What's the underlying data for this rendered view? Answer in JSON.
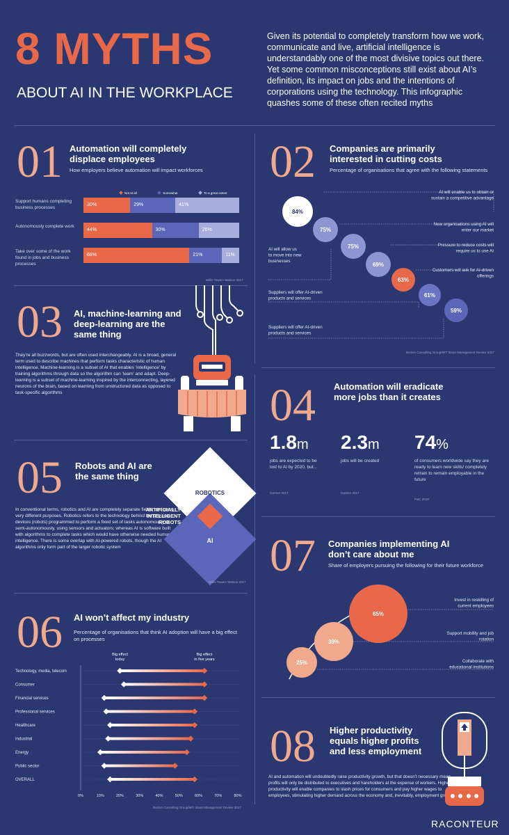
{
  "header": {
    "title": "8 MYTHS",
    "subtitle": "ABOUT AI IN THE WORKPLACE",
    "intro": "Given its potential to completely transform how we work, communicate and live, artificial intelligence is understandably one of the most divisive topics out there. Yet some common misconceptions still exist about AI’s definition, its impact on jobs and the intentions of corporations using the technology. This infographic quashes some of these often recited myths"
  },
  "m01": {
    "num": "01",
    "title": "Automation will completely displace employees",
    "sub": "How employers believe automation will impact workforces",
    "source": "Willis Towers Watson 2017"
  },
  "m02": {
    "num": "02",
    "title": "Companies are primarily interested in cutting costs",
    "sub": "Percentage of organisations that agree with the following statements",
    "source": "Boston Consulting Group/MIT Sloan Management Review 2017"
  },
  "m03": {
    "num": "03",
    "title": "AI, machine-learning and deep-learning are the same thing",
    "body": "They’re all buzzwords, but are often used interchangeably. AI is a broad, general term used to describe machines that perform tasks characteristic of human intelligence. Machine-learning is a subset of AI that enables ‘intelligence’ by training algorithms through data so the algorithm can ‘learn’ and adapt. Deep-learning is a subset of machine-learning inspired by the interconnecting, layered neurons of the brain, based on learning from unstructured data as opposed to task-specific algorithms"
  },
  "m04": {
    "num": "04",
    "title": "Automation will eradicate more jobs than it creates",
    "stats": [
      {
        "value": "1.8",
        "unit": "m",
        "desc": "jobs are expected to be lost to AI by 2020, but...",
        "source": "Gartner 2017"
      },
      {
        "value": "2.3",
        "unit": "m",
        "desc": "jobs will be created",
        "source": "Gartner 2017"
      },
      {
        "value": "74",
        "unit": "%",
        "desc": "of consumers worldwide say they are ready to learn new skills/ completely retrain to remain employable in the future",
        "source": "PwC 2018"
      }
    ]
  },
  "m05": {
    "num": "05",
    "title": "Robots and AI are the same thing",
    "body": "In conventional terms, robotics and AI are completely separate fields, and serve very different purposes. Robotics refers to the technology behind the physical devices (robots) programmed to perform a fixed set of tasks autonomously or semi-autonomously, using sensors and actuators; whereas AI is software built with algorithms to complete tasks which would have otherwise needed human intelligence. There is some overlap with AI-powered robots, though the AI algorithms only form part of the larger robotic system",
    "robotics": "ROBOTICS",
    "ai": "AI",
    "overlap": "ARTIFICIALLY INTELLIGENT ROBOTS",
    "source": "Willis Towers Watson 2017"
  },
  "m06": {
    "num": "06",
    "title": "AI won’t affect my industry",
    "sub": "Percentage of organisations that think AI adoption will have a big effect on processes",
    "legend_today": "Big effect today",
    "legend_five": "Big effect in five years",
    "source": "Boston Consulting Group/MIT Sloan Management Review 2017"
  },
  "m07": {
    "num": "07",
    "title": "Companies implementing AI don’t care about me",
    "sub": "Share of employers pursuing the following for their future workforce"
  },
  "m08": {
    "num": "08",
    "title": "Higher productivity equals higher profits and less employment",
    "body": "AI and automation will undoubtedly raise productivity growth, but that doesn’t necessary mean profits will only be distributed to executives and hareholders at the expense of workers. Higher productivity will enable companies to slash prices for consumers and pay higher wages to employees, stimulating higher demand across the economy and, inevitably, employment growth"
  },
  "brand": "RACONTEUR",
  "colors": {
    "background": "#2a3770",
    "orange": "#e8684a",
    "peach": "#f1a98d",
    "purple": "#5a66b8",
    "lavender": "#a7aede"
  },
  "chart_data": [
    {
      "type": "bar",
      "stacked": true,
      "orientation": "horizontal",
      "categories": [
        "Support humans completing business processes",
        "Autonomously complete work",
        "Take over some of the work found in jobs and business processes"
      ],
      "series": [
        {
          "name": "Not at all",
          "values": [
            30,
            44,
            68
          ]
        },
        {
          "name": "Somewhat",
          "values": [
            29,
            30,
            21
          ]
        },
        {
          "name": "To a great extent",
          "values": [
            41,
            26,
            11
          ]
        }
      ],
      "legend": "top-right"
    },
    {
      "type": "scatter",
      "categories": [
        "AI will enable us to obtain or sustain a competitive advantage",
        "New organisations using AI will enter our market",
        "AI will allow us to move into new businesses",
        "Pressure to reduce costs will require us to use AI",
        "Customers will ask for AI-driven offerings",
        "Suppliers will offer AI-driven products and services",
        "Suppliers will offer AI-driven products and services"
      ],
      "values": [
        84,
        75,
        75,
        69,
        63,
        61,
        59
      ]
    },
    {
      "type": "line",
      "categories": [
        "Technology, media, telecom",
        "Consumer",
        "Financial services",
        "Professional services",
        "Healthcare",
        "Industrial",
        "Energy",
        "Public sector",
        "OVERALL"
      ],
      "series": [
        {
          "name": "Big effect today",
          "values": [
            20,
            22,
            12,
            13,
            15,
            14,
            10,
            12,
            15
          ]
        },
        {
          "name": "Big effect in five years",
          "values": [
            63,
            63,
            63,
            58,
            58,
            56,
            54,
            48,
            58
          ]
        }
      ],
      "xlim": [
        0,
        80
      ],
      "xticks": [
        "0%",
        "10%",
        "20%",
        "30%",
        "40%",
        "50%",
        "60%",
        "70%",
        "80%"
      ]
    },
    {
      "type": "scatter",
      "categories": [
        "Invest in reskilling of current employees",
        "Support mobility and job rotation",
        "Collaborate with educational institutions"
      ],
      "values": [
        65,
        39,
        25
      ]
    }
  ]
}
